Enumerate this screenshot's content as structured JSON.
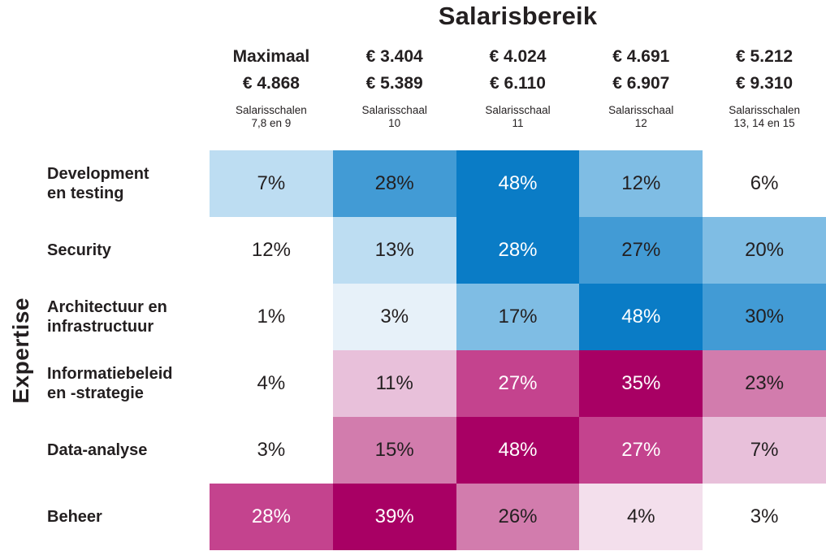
{
  "title": "Salarisbereik",
  "y_axis_label": "Expertise",
  "columns": [
    {
      "range": "Maximaal\n€ 4.868",
      "scale": "Salarisschalen\n7,8 en 9"
    },
    {
      "range": "€ 3.404\n€ 5.389",
      "scale": "Salarisschaal\n10"
    },
    {
      "range": "€ 4.024\n€ 6.110",
      "scale": "Salarisschaal\n11"
    },
    {
      "range": "€ 4.691\n€ 6.907",
      "scale": "Salarisschaal\n12"
    },
    {
      "range": "€ 5.212\n€ 9.310",
      "scale": "Salarisschalen\n13, 14 en 15"
    }
  ],
  "rows": [
    {
      "label": "Development\nen testing",
      "cells": [
        {
          "value": "7%",
          "bg": "#BDDDF2",
          "fg": "#231F20"
        },
        {
          "value": "28%",
          "bg": "#429BD5",
          "fg": "#231F20"
        },
        {
          "value": "48%",
          "bg": "#0A7CC6",
          "fg": "#FFFFFF"
        },
        {
          "value": "12%",
          "bg": "#7FBDE4",
          "fg": "#231F20"
        },
        {
          "value": "6%",
          "bg": "#FFFFFF",
          "fg": "#231F20"
        }
      ]
    },
    {
      "label": "Security",
      "cells": [
        {
          "value": "12%",
          "bg": "#FFFFFF",
          "fg": "#231F20"
        },
        {
          "value": "13%",
          "bg": "#BDDDF2",
          "fg": "#231F20"
        },
        {
          "value": "28%",
          "bg": "#0A7CC6",
          "fg": "#FFFFFF"
        },
        {
          "value": "27%",
          "bg": "#429BD5",
          "fg": "#231F20"
        },
        {
          "value": "20%",
          "bg": "#7FBDE4",
          "fg": "#231F20"
        }
      ]
    },
    {
      "label": "Architectuur en\ninfrastructuur",
      "cells": [
        {
          "value": "1%",
          "bg": "#FFFFFF",
          "fg": "#231F20"
        },
        {
          "value": "3%",
          "bg": "#E7F1F9",
          "fg": "#231F20"
        },
        {
          "value": "17%",
          "bg": "#7FBDE4",
          "fg": "#231F20"
        },
        {
          "value": "48%",
          "bg": "#0A7CC6",
          "fg": "#FFFFFF"
        },
        {
          "value": "30%",
          "bg": "#429BD5",
          "fg": "#231F20"
        }
      ]
    },
    {
      "label": "Informatiebeleid\nen -strategie",
      "cells": [
        {
          "value": "4%",
          "bg": "#FFFFFF",
          "fg": "#231F20"
        },
        {
          "value": "11%",
          "bg": "#E8C0DA",
          "fg": "#231F20"
        },
        {
          "value": "27%",
          "bg": "#C4438E",
          "fg": "#FFFFFF"
        },
        {
          "value": "35%",
          "bg": "#A80064",
          "fg": "#FFFFFF"
        },
        {
          "value": "23%",
          "bg": "#D27CAD",
          "fg": "#231F20"
        }
      ]
    },
    {
      "label": "Data-analyse",
      "cells": [
        {
          "value": "3%",
          "bg": "#FFFFFF",
          "fg": "#231F20"
        },
        {
          "value": "15%",
          "bg": "#D27CAD",
          "fg": "#231F20"
        },
        {
          "value": "48%",
          "bg": "#A80064",
          "fg": "#FFFFFF"
        },
        {
          "value": "27%",
          "bg": "#C4438E",
          "fg": "#FFFFFF"
        },
        {
          "value": "7%",
          "bg": "#E8C0DA",
          "fg": "#231F20"
        }
      ]
    },
    {
      "label": "Beheer",
      "cells": [
        {
          "value": "28%",
          "bg": "#C4438E",
          "fg": "#FFFFFF"
        },
        {
          "value": "39%",
          "bg": "#A80064",
          "fg": "#FFFFFF"
        },
        {
          "value": "26%",
          "bg": "#D27CAD",
          "fg": "#231F20"
        },
        {
          "value": "4%",
          "bg": "#F3DFEC",
          "fg": "#231F20"
        },
        {
          "value": "3%",
          "bg": "#FFFFFF",
          "fg": "#231F20"
        }
      ]
    }
  ],
  "palette": {
    "blue_scale": [
      "#FFFFFF",
      "#E7F1F9",
      "#BDDDF2",
      "#7FBDE4",
      "#429BD5",
      "#0A7CC6"
    ],
    "pink_scale": [
      "#FFFFFF",
      "#F3DFEC",
      "#E8C0DA",
      "#D27CAD",
      "#C4438E",
      "#A80064"
    ],
    "text_dark": "#231F20",
    "text_light": "#FFFFFF"
  },
  "chart_data": {
    "type": "heatmap",
    "title": "Salarisbereik",
    "xlabel": "Salarisbereik",
    "ylabel": "Expertise",
    "x_categories": [
      "Salarisschalen 7,8 en 9",
      "Salarisschaal 10",
      "Salarisschaal 11",
      "Salarisschaal 12",
      "Salarisschalen 13, 14 en 15"
    ],
    "x_salary_range_lines": [
      [
        "Maximaal",
        "€ 4.868"
      ],
      [
        "€ 3.404",
        "€ 5.389"
      ],
      [
        "€ 4.024",
        "€ 6.110"
      ],
      [
        "€ 4.691",
        "€ 6.907"
      ],
      [
        "€ 5.212",
        "€ 9.310"
      ]
    ],
    "y_categories": [
      "Development en testing",
      "Security",
      "Architectuur en infrastructuur",
      "Informatiebeleid en -strategie",
      "Data-analyse",
      "Beheer"
    ],
    "values_percent": [
      [
        7,
        28,
        48,
        12,
        6
      ],
      [
        12,
        13,
        28,
        27,
        20
      ],
      [
        1,
        3,
        17,
        48,
        30
      ],
      [
        4,
        11,
        27,
        35,
        23
      ],
      [
        3,
        15,
        48,
        27,
        7
      ],
      [
        28,
        39,
        26,
        4,
        3
      ]
    ],
    "legend_position": "none",
    "grid": false,
    "color_coding": "blue intensity scale for top three expertise rows, pink/magenta intensity scale for bottom three rows; darker = higher percentage"
  }
}
